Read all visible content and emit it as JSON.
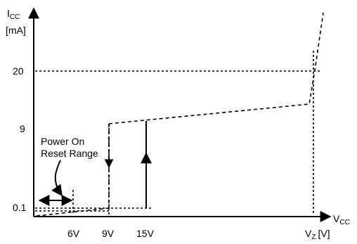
{
  "y_axis": {
    "label_main": "I",
    "label_sub": "CC",
    "unit": "[mA]"
  },
  "x_axis": {
    "label_main": "V",
    "label_sub": "CC"
  },
  "y_ticks": [
    "20",
    "9",
    "0.1"
  ],
  "x_ticks": [
    "6V",
    "9V",
    "15V"
  ],
  "vz_tick": {
    "main": "V",
    "sub": "Z",
    "unit": "[V]"
  },
  "annotation": {
    "line1": "Power On",
    "line2": "Reset Range"
  }
}
